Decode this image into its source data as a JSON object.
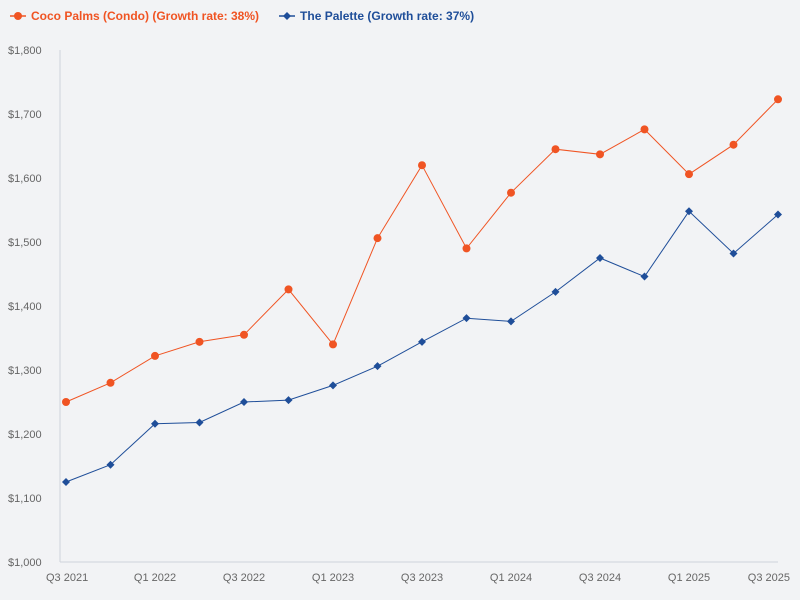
{
  "chart_data": {
    "type": "line",
    "title": "",
    "xlabel": "",
    "ylabel": "",
    "x": [
      "Q3 2021",
      "Q4 2021",
      "Q1 2022",
      "Q2 2022",
      "Q3 2022",
      "Q4 2022",
      "Q1 2023",
      "Q2 2023",
      "Q3 2023",
      "Q4 2023",
      "Q1 2024",
      "Q2 2024",
      "Q3 2024",
      "Q4 2024",
      "Q1 2025",
      "Q2 2025",
      "Q3 2025"
    ],
    "x_tick_labels": [
      "Q3 2021",
      "Q1 2022",
      "Q3 2022",
      "Q1 2023",
      "Q3 2023",
      "Q1 2024",
      "Q3 2024",
      "Q1 2025",
      "Q3 2025"
    ],
    "ylim": [
      1000,
      1800
    ],
    "y_ticks": [
      1000,
      1100,
      1200,
      1300,
      1400,
      1500,
      1600,
      1700,
      1800
    ],
    "y_tick_labels": [
      "$1,000",
      "$1,100",
      "$1,200",
      "$1,300",
      "$1,400",
      "$1,500",
      "$1,600",
      "$1,700",
      "$1,800"
    ],
    "grid": false,
    "legend_position": "top-left",
    "series": [
      {
        "name": "Coco Palms (Condo) (Growth rate: 38%)",
        "color": "#f05423",
        "marker": "circle",
        "values": [
          1250,
          1280,
          1322,
          1344,
          1355,
          1426,
          1340,
          1506,
          1620,
          1490,
          1577,
          1645,
          1637,
          1676,
          1606,
          1652,
          1723
        ]
      },
      {
        "name": "The Palette (Growth rate: 37%)",
        "color": "#1f4e99",
        "marker": "diamond",
        "values": [
          1125,
          1152,
          1216,
          1218,
          1250,
          1253,
          1276,
          1306,
          1344,
          1381,
          1376,
          1422,
          1475,
          1446,
          1548,
          1482,
          1543
        ]
      }
    ]
  }
}
